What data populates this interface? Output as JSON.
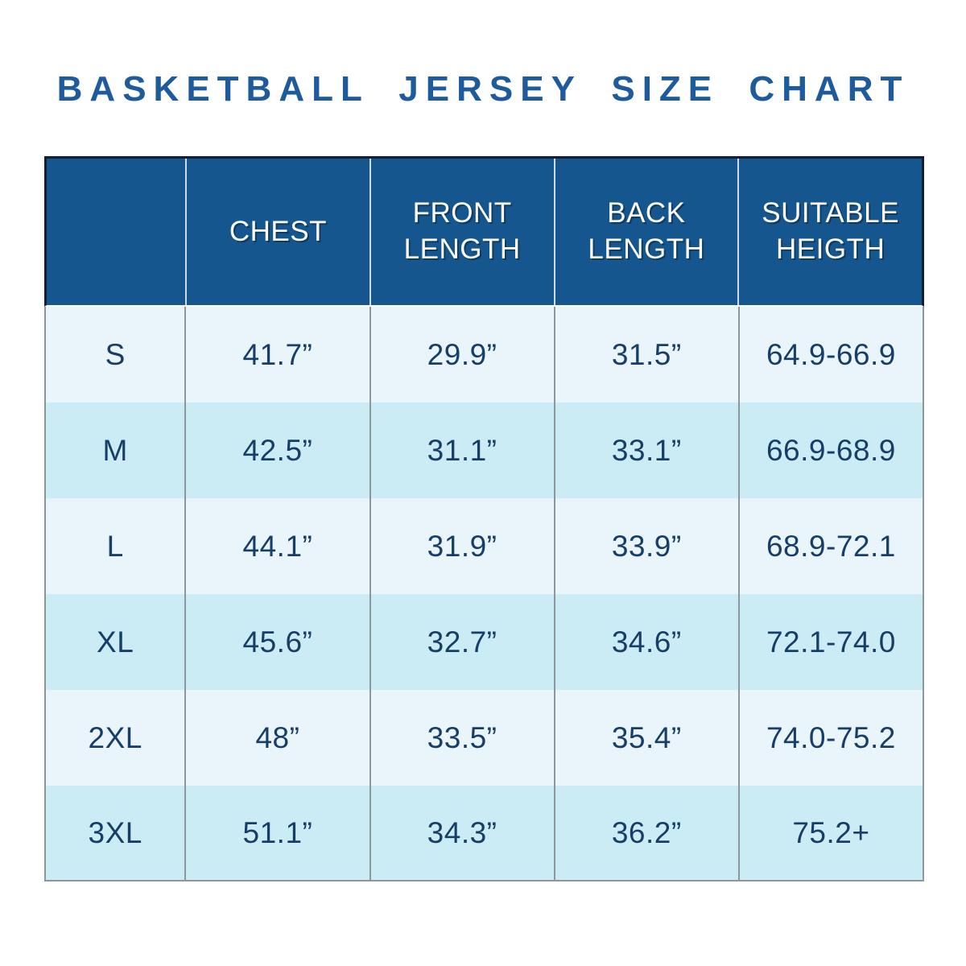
{
  "chart_data": {
    "type": "table",
    "title": "BASKETBALL JERSEY SIZE CHART",
    "columns": [
      "",
      "CHEST",
      "FRONT LENGTH",
      "BACK LENGTH",
      "SUITABLE HEIGTH"
    ],
    "rows": [
      [
        "S",
        "41.7”",
        "29.9”",
        "31.5”",
        "64.9-66.9"
      ],
      [
        "M",
        "42.5”",
        "31.1”",
        "33.1”",
        "66.9-68.9"
      ],
      [
        "L",
        "44.1”",
        "31.9”",
        "33.9”",
        "68.9-72.1"
      ],
      [
        "XL",
        "45.6”",
        "32.7”",
        "34.6”",
        "72.1-74.0"
      ],
      [
        "2XL",
        "48”",
        "33.5”",
        "35.4”",
        "74.0-75.2"
      ],
      [
        "3XL",
        "51.1”",
        "34.3”",
        "36.2”",
        "75.2+"
      ]
    ],
    "units": "inches",
    "legend_position": "none",
    "grid": true
  },
  "colors": {
    "title_text": "#1e5b9c",
    "header_bg": "#15568e",
    "header_text": "#ffffff",
    "data_text": "#163e67",
    "row_light": "#e9f4fb",
    "row_alt": "#cbecf4",
    "grid_line": "#8d969c",
    "header_outline": "#141e33"
  }
}
